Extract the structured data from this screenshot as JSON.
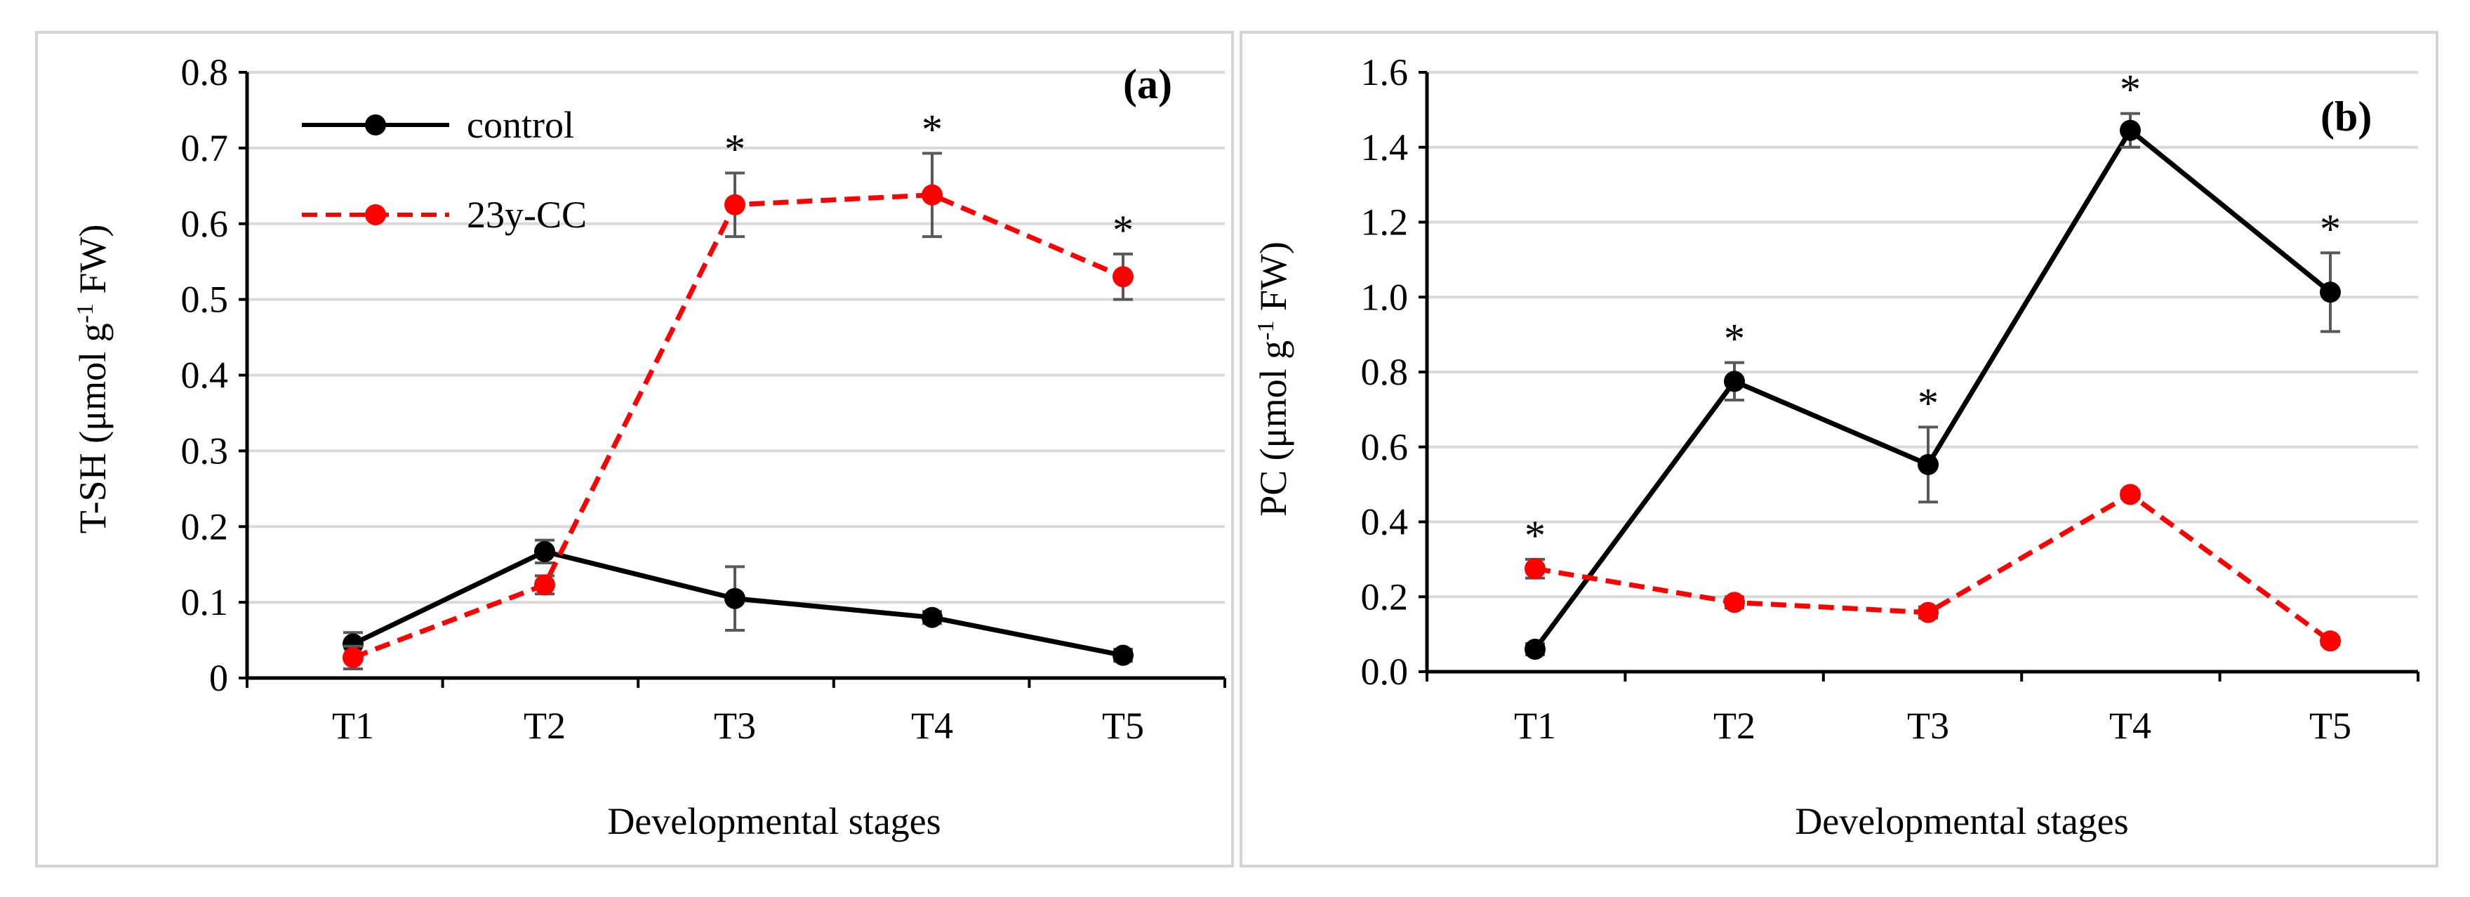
{
  "chart_data": [
    {
      "type": "line",
      "panel_label": "(a)",
      "ylabel_prefix": "T-SH (μmol g",
      "ylabel_sup": "-1",
      "ylabel_suffix": " FW)",
      "xlabel": "Developmental stages",
      "categories": [
        "T1",
        "T2",
        "T3",
        "T4",
        "T5"
      ],
      "ylim": [
        0,
        0.8
      ],
      "yticks": [
        "0",
        "0.1",
        "0.2",
        "0.3",
        "0.4",
        "0.5",
        "0.6",
        "0.7",
        "0.8"
      ],
      "grid": true,
      "legend_position": "top-left",
      "series": [
        {
          "name": "control",
          "color": "#000000",
          "dashed": false,
          "values": [
            0.045,
            0.167,
            0.105,
            0.08,
            0.03
          ],
          "errors": [
            0.015,
            0.015,
            0.042,
            0.008,
            0.008
          ],
          "significant": [
            false,
            false,
            false,
            false,
            false
          ]
        },
        {
          "name": "23y-CC",
          "color": "#ff0000",
          "dashed": true,
          "values": [
            0.027,
            0.123,
            0.625,
            0.638,
            0.53
          ],
          "errors": [
            0.015,
            0.012,
            0.042,
            0.055,
            0.03
          ],
          "significant": [
            false,
            false,
            true,
            true,
            true
          ]
        }
      ],
      "significance_marker": "*"
    },
    {
      "type": "line",
      "panel_label": "(b)",
      "ylabel_prefix": "PC (μmol g",
      "ylabel_sup": "-1",
      "ylabel_suffix": " FW)",
      "xlabel": "Developmental stages",
      "categories": [
        "T1",
        "T2",
        "T3",
        "T4",
        "T5"
      ],
      "ylim": [
        0,
        1.6
      ],
      "yticks": [
        "0.0",
        "0.2",
        "0.4",
        "0.6",
        "0.8",
        "1.0",
        "1.2",
        "1.4",
        "1.6"
      ],
      "grid": true,
      "series": [
        {
          "name": "control",
          "color": "#000000",
          "dashed": false,
          "values": [
            0.06,
            0.775,
            0.553,
            1.445,
            1.013
          ],
          "errors": [
            0.015,
            0.05,
            0.1,
            0.045,
            0.105
          ],
          "significant": [
            false,
            true,
            true,
            true,
            true
          ]
        },
        {
          "name": "23y-CC",
          "color": "#ff0000",
          "dashed": true,
          "values": [
            0.275,
            0.185,
            0.158,
            0.473,
            0.082
          ],
          "errors": [
            0.025,
            0.015,
            0.015,
            0.01,
            0.01
          ],
          "significant": [
            true,
            false,
            false,
            false,
            false
          ]
        }
      ],
      "significance_marker": "*"
    }
  ]
}
